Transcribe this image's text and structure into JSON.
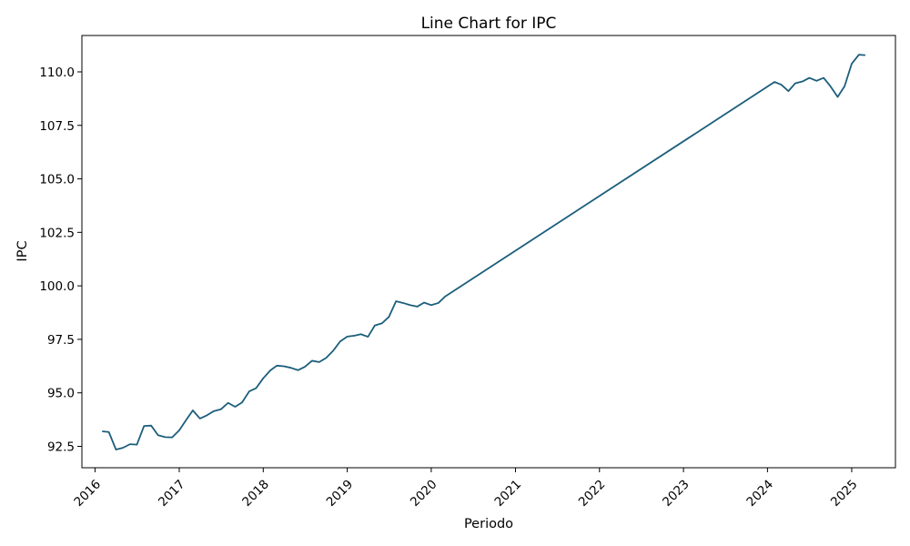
{
  "chart_data": {
    "type": "line",
    "title": "Line Chart for IPC",
    "xlabel": "Periodo",
    "ylabel": "IPC",
    "x_tick_labels": [
      "2016",
      "2017",
      "2018",
      "2019",
      "2020",
      "2021",
      "2022",
      "2023",
      "2024",
      "2025"
    ],
    "y_tick_labels": [
      "92.5",
      "95.0",
      "97.5",
      "100.0",
      "102.5",
      "105.0",
      "107.5",
      "110.0"
    ],
    "y_ticks": [
      92.5,
      95.0,
      97.5,
      100.0,
      102.5,
      105.0,
      107.5,
      110.0
    ],
    "xlim": [
      "2015-11-05",
      "2025-07-10"
    ],
    "ylim": [
      91.5,
      111.7
    ],
    "grid": false,
    "line_color": "#1b5e7b",
    "series": [
      {
        "x": [
          "2016-02-01",
          "2016-03-01",
          "2016-04-01",
          "2016-05-01",
          "2016-06-01",
          "2016-07-01",
          "2016-08-01",
          "2016-09-01",
          "2016-10-01",
          "2016-11-01",
          "2016-12-01",
          "2017-01-01",
          "2017-02-01",
          "2017-03-01",
          "2017-04-01",
          "2017-05-01",
          "2017-06-01",
          "2017-07-01",
          "2017-08-01",
          "2017-09-01",
          "2017-10-01",
          "2017-11-01",
          "2017-12-01",
          "2018-01-01",
          "2018-02-01",
          "2018-03-01",
          "2018-04-01",
          "2018-05-01",
          "2018-06-01",
          "2018-07-01",
          "2018-08-01",
          "2018-09-01",
          "2018-10-01",
          "2018-11-01",
          "2018-12-01",
          "2019-01-01",
          "2019-02-01",
          "2019-03-01",
          "2019-04-01",
          "2019-05-01",
          "2019-06-01",
          "2019-07-01",
          "2019-08-01",
          "2019-09-01",
          "2019-10-01",
          "2019-11-01",
          "2019-12-01",
          "2020-01-01",
          "2020-02-01",
          "2020-03-01",
          "2024-02-01",
          "2024-03-01",
          "2024-04-01",
          "2024-05-01",
          "2024-06-01",
          "2024-07-01",
          "2024-08-01",
          "2024-09-01",
          "2024-10-01",
          "2024-11-01",
          "2024-12-01",
          "2025-01-01",
          "2025-02-01",
          "2025-03-01"
        ],
        "values": [
          93.2,
          93.17,
          92.35,
          92.43,
          92.6,
          92.58,
          93.45,
          93.47,
          93.02,
          92.93,
          92.92,
          93.25,
          93.75,
          94.18,
          93.8,
          93.95,
          94.15,
          94.23,
          94.53,
          94.35,
          94.55,
          95.07,
          95.22,
          95.68,
          96.05,
          96.27,
          96.24,
          96.17,
          96.06,
          96.22,
          96.5,
          96.44,
          96.63,
          96.97,
          97.4,
          97.63,
          97.67,
          97.74,
          97.62,
          98.15,
          98.25,
          98.55,
          99.28,
          99.2,
          99.1,
          99.03,
          99.22,
          99.1,
          99.2,
          99.5,
          109.53,
          109.4,
          109.1,
          109.47,
          109.55,
          109.72,
          109.58,
          109.72,
          109.32,
          108.83,
          109.33,
          110.38,
          110.8,
          110.78
        ]
      }
    ]
  }
}
